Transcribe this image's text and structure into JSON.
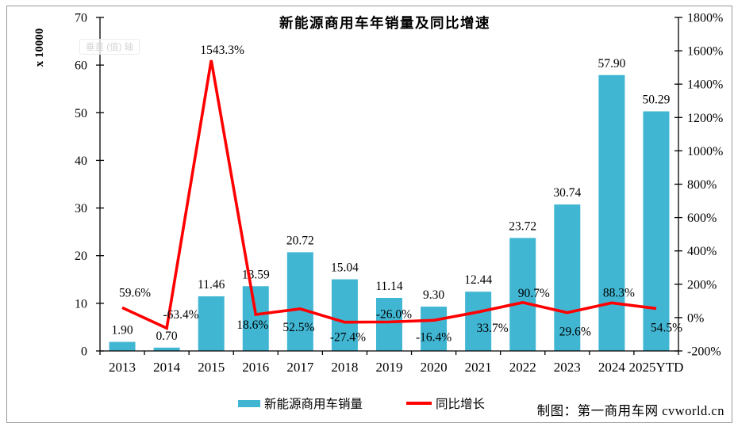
{
  "title": "新能源商用车年销量及同比增速",
  "axis_tooltip": "垂直 (值) 轴",
  "chart_data": {
    "type": "combo-bar-line",
    "title": "新能源商用车年销量及同比增速",
    "categories": [
      "2013",
      "2014",
      "2015",
      "2016",
      "2017",
      "2018",
      "2019",
      "2020",
      "2021",
      "2022",
      "2023",
      "2024",
      "2025YTD"
    ],
    "series": [
      {
        "name": "新能源商用车销量",
        "type": "bar",
        "axis": "left",
        "color": "#41B6D3",
        "values": [
          1.9,
          0.7,
          11.46,
          13.59,
          20.72,
          15.04,
          11.14,
          9.3,
          12.44,
          23.72,
          30.74,
          57.9,
          50.29
        ],
        "labels": [
          "1.90",
          "0.70",
          "11.46",
          "13.59",
          "20.72",
          "15.04",
          "11.14",
          "9.30",
          "12.44",
          "23.72",
          "30.74",
          "57.90",
          "50.29"
        ]
      },
      {
        "name": "同比增长",
        "type": "line",
        "axis": "right",
        "color": "#FF0000",
        "values": [
          59.6,
          -63.4,
          1543.3,
          18.6,
          52.5,
          -27.4,
          -26.0,
          -16.4,
          33.7,
          90.7,
          29.6,
          88.3,
          54.5
        ],
        "labels": [
          "59.6%",
          "-63.4%",
          "1543.3%",
          "18.6%",
          "52.5%",
          "-27.4%",
          "-26.0%",
          "-16.4%",
          "33.7%",
          "90.7%",
          "29.6%",
          "88.3%",
          "54.5%"
        ],
        "label_offsets": [
          [
            16,
            -14
          ],
          [
            18,
            -12
          ],
          [
            14,
            -8
          ],
          [
            -4,
            18
          ],
          [
            -2,
            28
          ],
          [
            4,
            24
          ],
          [
            6,
            -5
          ],
          [
            0,
            26
          ],
          [
            18,
            25
          ],
          [
            14,
            -7
          ],
          [
            10,
            29
          ],
          [
            9,
            -8
          ],
          [
            13,
            29
          ]
        ]
      }
    ],
    "axes": {
      "left": {
        "title": "x 10000",
        "min": 0,
        "max": 70,
        "step": 10,
        "tick_labels": [
          "0",
          "10",
          "20",
          "30",
          "40",
          "50",
          "60",
          "70"
        ]
      },
      "right": {
        "min": -200,
        "max": 1800,
        "step": 200,
        "suffix": "%",
        "tick_labels": [
          "-200%",
          "0%",
          "200%",
          "400%",
          "600%",
          "800%",
          "1000%",
          "1200%",
          "1400%",
          "1600%",
          "1800%"
        ]
      }
    },
    "grid": false,
    "legend_position": "bottom"
  },
  "footer": {
    "credit": "制图：第一商用车网  cvworld.cn"
  }
}
